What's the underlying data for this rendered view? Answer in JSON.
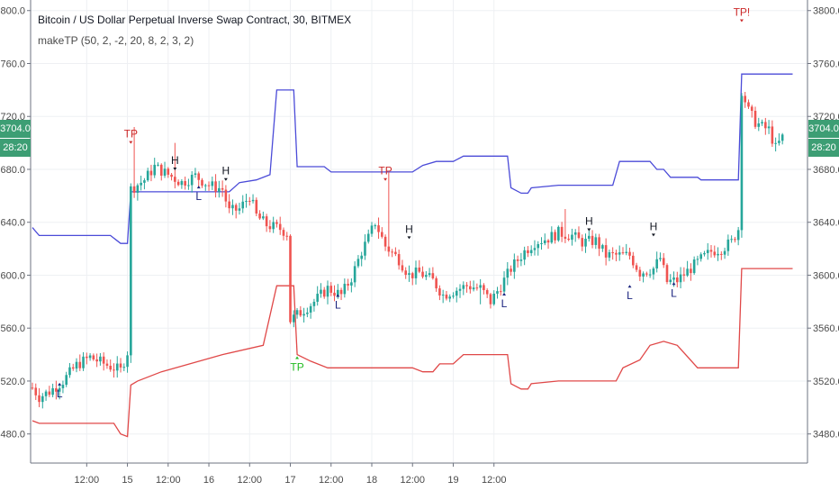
{
  "chart_data": {
    "type": "candlestick",
    "title": "Bitcoin / US Dollar Perpetual Inverse Swap Contract, 30, BITMEX",
    "indicator": "makeTP (50, 2, -2, 20, 8, 2, 3, 2)",
    "ylim": [
      3458,
      3808
    ],
    "y_ticks": [
      "3800.0",
      "3760.0",
      "3720.0",
      "3680.0",
      "3640.0",
      "3600.0",
      "3560.0",
      "3520.0",
      "3480.0"
    ],
    "x_ticks": [
      "12:00",
      "15",
      "12:00",
      "16",
      "12:00",
      "17",
      "12:00",
      "18",
      "12:00",
      "19",
      "12:00"
    ],
    "current_price": "3704.0",
    "countdown": "28:20",
    "price_anchors": [
      [
        0,
        3515
      ],
      [
        2,
        3508
      ],
      [
        5,
        3512
      ],
      [
        9,
        3520
      ],
      [
        13,
        3532
      ],
      [
        17,
        3538
      ],
      [
        22,
        3532
      ],
      [
        26,
        3528
      ],
      [
        28,
        3542
      ],
      [
        29,
        3665
      ],
      [
        33,
        3672
      ],
      [
        36,
        3682
      ],
      [
        40,
        3676
      ],
      [
        44,
        3670
      ],
      [
        48,
        3675
      ],
      [
        52,
        3668
      ],
      [
        56,
        3665
      ],
      [
        58,
        3648
      ],
      [
        61,
        3650
      ],
      [
        64,
        3660
      ],
      [
        66,
        3645
      ],
      [
        69,
        3638
      ],
      [
        73,
        3635
      ],
      [
        75,
        3632
      ],
      [
        76,
        3566
      ],
      [
        79,
        3572
      ],
      [
        83,
        3580
      ],
      [
        87,
        3590
      ],
      [
        91,
        3585
      ],
      [
        94,
        3598
      ],
      [
        97,
        3618
      ],
      [
        99,
        3628
      ],
      [
        101,
        3640
      ],
      [
        104,
        3622
      ],
      [
        108,
        3612
      ],
      [
        111,
        3600
      ],
      [
        114,
        3602
      ],
      [
        118,
        3596
      ],
      [
        121,
        3585
      ],
      [
        124,
        3588
      ],
      [
        128,
        3592
      ],
      [
        132,
        3590
      ],
      [
        135,
        3580
      ],
      [
        138,
        3592
      ],
      [
        141,
        3605
      ],
      [
        145,
        3618
      ],
      [
        148,
        3625
      ],
      [
        152,
        3628
      ],
      [
        155,
        3632
      ],
      [
        159,
        3630
      ],
      [
        162,
        3625
      ],
      [
        166,
        3626
      ],
      [
        169,
        3615
      ],
      [
        173,
        3615
      ],
      [
        176,
        3615
      ],
      [
        179,
        3602
      ],
      [
        183,
        3605
      ],
      [
        185,
        3613
      ],
      [
        187,
        3595
      ],
      [
        190,
        3596
      ],
      [
        193,
        3603
      ],
      [
        197,
        3612
      ],
      [
        200,
        3618
      ],
      [
        203,
        3620
      ],
      [
        206,
        3625
      ],
      [
        208,
        3635
      ],
      [
        209,
        3740
      ],
      [
        211,
        3724
      ],
      [
        213,
        3716
      ],
      [
        215,
        3712
      ],
      [
        217,
        3710
      ],
      [
        219,
        3696
      ],
      [
        221,
        3704
      ]
    ],
    "wick_spikes": [
      [
        30,
        3712
      ],
      [
        42,
        3700
      ],
      [
        105,
        3678
      ],
      [
        132,
        3578
      ],
      [
        157,
        3650
      ]
    ],
    "series": [
      {
        "name": "Upper band",
        "color": "#4b4bd8",
        "values": [
          [
            0,
            3636
          ],
          [
            2,
            3630
          ],
          [
            23,
            3630
          ],
          [
            26,
            3624
          ],
          [
            28,
            3624
          ],
          [
            29,
            3663
          ],
          [
            58,
            3663
          ],
          [
            61,
            3670
          ],
          [
            66,
            3672
          ],
          [
            70,
            3676
          ],
          [
            72,
            3740
          ],
          [
            77,
            3740
          ],
          [
            78,
            3682
          ],
          [
            86,
            3682
          ],
          [
            88,
            3678
          ],
          [
            112,
            3678
          ],
          [
            115,
            3683
          ],
          [
            119,
            3686
          ],
          [
            124,
            3686
          ],
          [
            127,
            3690
          ],
          [
            140,
            3690
          ],
          [
            141,
            3666
          ],
          [
            144,
            3662
          ],
          [
            146,
            3662
          ],
          [
            147,
            3666
          ],
          [
            155,
            3668
          ],
          [
            171,
            3668
          ],
          [
            173,
            3686
          ],
          [
            182,
            3686
          ],
          [
            184,
            3680
          ],
          [
            186,
            3680
          ],
          [
            188,
            3674
          ],
          [
            196,
            3674
          ],
          [
            197,
            3672
          ],
          [
            208,
            3672
          ],
          [
            209,
            3752
          ],
          [
            224,
            3752
          ]
        ]
      },
      {
        "name": "Lower band",
        "color": "#e04848",
        "values": [
          [
            0,
            3490
          ],
          [
            2,
            3488
          ],
          [
            24,
            3488
          ],
          [
            26,
            3480
          ],
          [
            28,
            3478
          ],
          [
            29,
            3517
          ],
          [
            31,
            3520
          ],
          [
            38,
            3527
          ],
          [
            56,
            3540
          ],
          [
            68,
            3547
          ],
          [
            72,
            3592
          ],
          [
            77,
            3592
          ],
          [
            78,
            3540
          ],
          [
            82,
            3535
          ],
          [
            87,
            3530
          ],
          [
            112,
            3530
          ],
          [
            115,
            3527
          ],
          [
            118,
            3527
          ],
          [
            120,
            3533
          ],
          [
            124,
            3533
          ],
          [
            127,
            3540
          ],
          [
            140,
            3540
          ],
          [
            141,
            3518
          ],
          [
            144,
            3514
          ],
          [
            146,
            3514
          ],
          [
            147,
            3518
          ],
          [
            155,
            3520
          ],
          [
            172,
            3520
          ],
          [
            174,
            3530
          ],
          [
            179,
            3536
          ],
          [
            182,
            3547
          ],
          [
            186,
            3550
          ],
          [
            190,
            3547
          ],
          [
            196,
            3530
          ],
          [
            208,
            3530
          ],
          [
            209,
            3605
          ],
          [
            224,
            3605
          ]
        ]
      }
    ],
    "markers": [
      {
        "text": "TP",
        "bar": 29,
        "price": 3700,
        "color": "#cc2b2b",
        "side": "above"
      },
      {
        "text": "TP",
        "bar": 104,
        "price": 3672,
        "color": "#cc2b2b",
        "side": "above"
      },
      {
        "text": "TP!",
        "bar": 209,
        "price": 3792,
        "color": "#cc2b2b",
        "side": "above"
      },
      {
        "text": "TP",
        "bar": 78,
        "price": 3538,
        "color": "#22bb22",
        "side": "below"
      },
      {
        "text": "H",
        "bar": 42,
        "price": 3680,
        "color": "#131722",
        "side": "above"
      },
      {
        "text": "H",
        "bar": 57,
        "price": 3672,
        "color": "#131722",
        "side": "above"
      },
      {
        "text": "H",
        "bar": 111,
        "price": 3628,
        "color": "#131722",
        "side": "above"
      },
      {
        "text": "H",
        "bar": 164,
        "price": 3634,
        "color": "#131722",
        "side": "above"
      },
      {
        "text": "H",
        "bar": 183,
        "price": 3630,
        "color": "#131722",
        "side": "above"
      },
      {
        "text": "L",
        "bar": 8,
        "price": 3518,
        "color": "#1a237e",
        "side": "below"
      },
      {
        "text": "L",
        "bar": 49,
        "price": 3667,
        "color": "#1a237e",
        "side": "below"
      },
      {
        "text": "L",
        "bar": 90,
        "price": 3585,
        "color": "#1a237e",
        "side": "below"
      },
      {
        "text": "L",
        "bar": 139,
        "price": 3586,
        "color": "#1a237e",
        "side": "below"
      },
      {
        "text": "L",
        "bar": 176,
        "price": 3592,
        "color": "#1a237e",
        "side": "below"
      },
      {
        "text": "L",
        "bar": 189,
        "price": 3594,
        "color": "#1a237e",
        "side": "below"
      }
    ],
    "up_color": "#26a69a",
    "down_color": "#ef5350",
    "grid": true,
    "legend": "none"
  }
}
